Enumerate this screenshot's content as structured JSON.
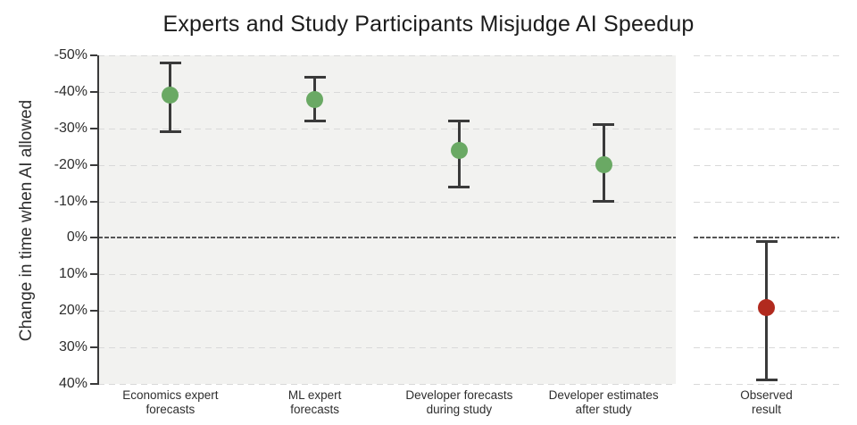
{
  "chart_data": {
    "type": "scatter",
    "title": "Experts and Study Participants Misjudge AI Speedup",
    "ylabel": "Change in time when AI allowed",
    "xlabel": "",
    "y_axis": {
      "inverted": true,
      "min": -50,
      "max": 40,
      "ticks": [
        -50,
        -40,
        -30,
        -20,
        -10,
        0,
        10,
        20,
        30,
        40
      ],
      "tick_labels": [
        "-50%",
        "-40%",
        "-30%",
        "-20%",
        "-10%",
        "0%",
        "10%",
        "20%",
        "30%",
        "40%"
      ],
      "grid": "dashed",
      "zero_line": true
    },
    "panels": [
      {
        "name": "forecasts"
      },
      {
        "name": "observed"
      }
    ],
    "points": [
      {
        "label": "Economics expert forecasts",
        "label_lines": [
          "Economics expert",
          "forecasts"
        ],
        "value": -39,
        "ci_low": -48,
        "ci_high": -29,
        "panel": 0,
        "color_key": "forecast"
      },
      {
        "label": "ML expert forecasts",
        "label_lines": [
          "ML expert",
          "forecasts"
        ],
        "value": -38,
        "ci_low": -44,
        "ci_high": -32,
        "panel": 0,
        "color_key": "forecast"
      },
      {
        "label": "Developer forecasts during study",
        "label_lines": [
          "Developer forecasts",
          "during study"
        ],
        "value": -24,
        "ci_low": -32,
        "ci_high": -14,
        "panel": 0,
        "color_key": "forecast"
      },
      {
        "label": "Developer estimates after study",
        "label_lines": [
          "Developer estimates",
          "after study"
        ],
        "value": -20,
        "ci_low": -31,
        "ci_high": -10,
        "panel": 0,
        "color_key": "forecast"
      },
      {
        "label": "Observed result",
        "label_lines": [
          "Observed",
          "result"
        ],
        "value": 19,
        "ci_low": 1,
        "ci_high": 39,
        "panel": 1,
        "color_key": "observed"
      }
    ],
    "colors": {
      "forecast": "#6aa964",
      "observed": "#b12a1e",
      "error_bar": "#3a3a3a",
      "panel_bg": "#f2f2f0",
      "grid": "#d9d9d9",
      "zero_line": "#555555",
      "axis": "#3a3a3a",
      "text": "#2e2e2e",
      "title": "#1c1c1c"
    }
  }
}
